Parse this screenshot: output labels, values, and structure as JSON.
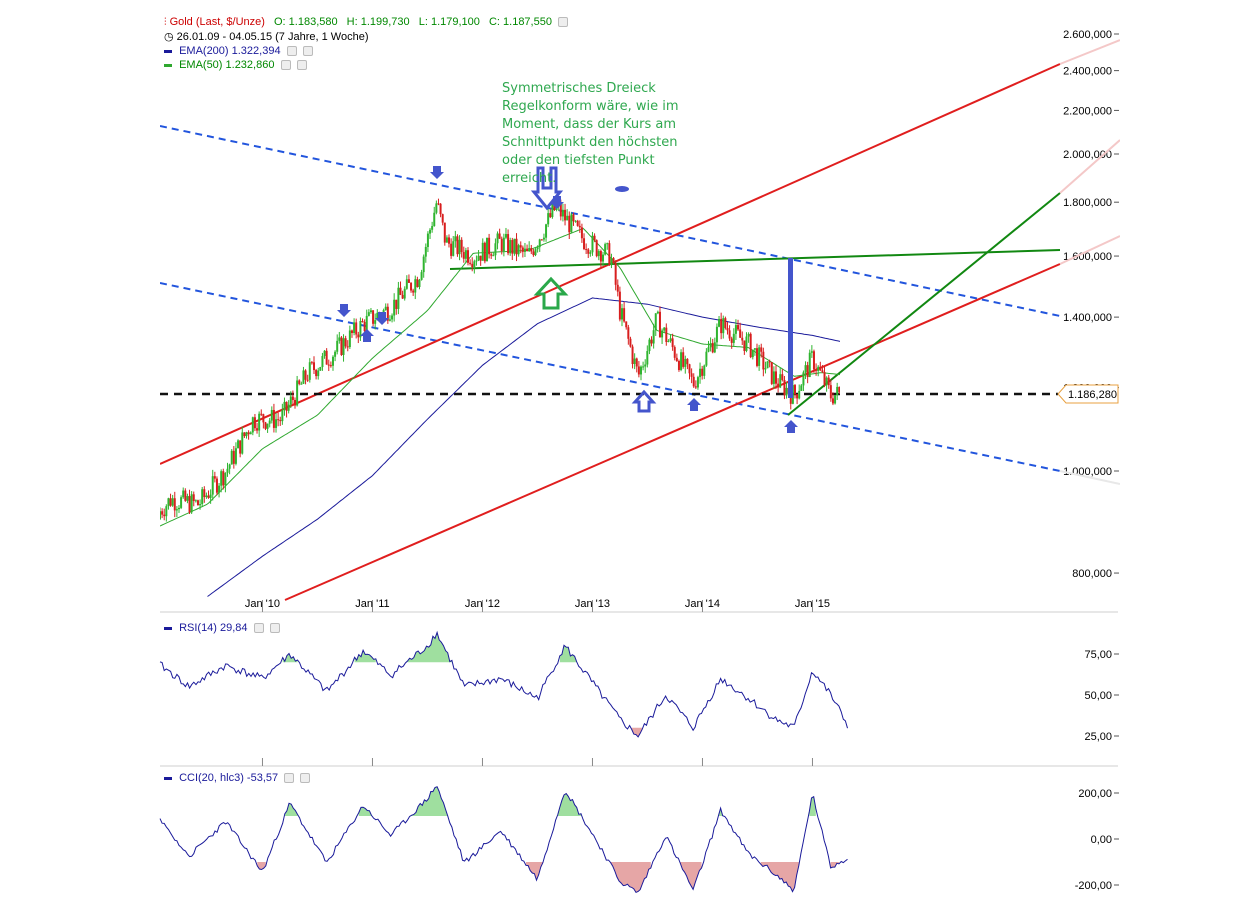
{
  "legend": {
    "instrument": "Gold (Last, $/Unze)",
    "open": "O: 1.183,580",
    "high": "H: 1.199,730",
    "low": "L: 1.179,100",
    "close": "C: 1.187,550",
    "period": "26.01.09 - 04.05.15 (7 Jahre, 1 Woche)",
    "ema200": "EMA(200)  1.322,394",
    "ema50": "EMA(50)  1.232,860",
    "rsi": "RSI(14)  29,84",
    "cci": "CCI(20, hlc3)  -53,57"
  },
  "annotation": "Symmetrisches Dreieck Regelkonform wäre, wie im Moment, dass der Kurs am Schnittpunkt den höchsten oder den tiefsten Punkt erreicht.",
  "current_price_label": "1.186,280",
  "colors": {
    "up_candle": "#2fb42f",
    "down_candle": "#d81e1e",
    "ema200": "#1a1a9a",
    "ema50": "#2fa82f",
    "red_trend": "#e01e1e",
    "blue_channel": "#2255dd",
    "green_trend": "#118811",
    "arrow_blue": "#4455cc",
    "arrow_green": "#2aa84a",
    "overbought_fill": "#9fdf9f",
    "oversold_fill": "#e6a6a6",
    "indicator_line": "#1a1a9a"
  },
  "chart_data": [
    {
      "type": "line",
      "title": "Gold (Last, $/Unze)",
      "x_ticks": [
        "Jan '10",
        "Jan '11",
        "Jan '12",
        "Jan '13",
        "Jan '14",
        "Jan '15"
      ],
      "y_ticks": [
        "800,000",
        "1.000,000",
        "1.200,000",
        "1.400,000",
        "1.600,000",
        "1.800,000",
        "2.000,000",
        "2.200,000",
        "2.400,000",
        "2.600,000"
      ],
      "y_scale": "log",
      "ylim": [
        720,
        2650
      ],
      "x_range": [
        "2009-01-26",
        "2015-05-04"
      ],
      "series": [
        {
          "name": "Gold",
          "x": [
            "2009-01",
            "2009-03",
            "2009-06",
            "2009-09",
            "2009-12",
            "2010-03",
            "2010-06",
            "2010-09",
            "2010-12",
            "2011-03",
            "2011-06",
            "2011-08",
            "2011-09",
            "2011-12",
            "2012-03",
            "2012-06",
            "2012-09",
            "2012-12",
            "2013-03",
            "2013-04",
            "2013-06",
            "2013-08",
            "2013-12",
            "2014-03",
            "2014-06",
            "2014-09",
            "2014-11",
            "2015-01",
            "2015-03",
            "2015-05"
          ],
          "values": [
            900,
            940,
            930,
            1000,
            1120,
            1120,
            1240,
            1300,
            1380,
            1430,
            1530,
            1800,
            1650,
            1600,
            1650,
            1600,
            1780,
            1660,
            1600,
            1420,
            1230,
            1390,
            1210,
            1380,
            1320,
            1220,
            1180,
            1280,
            1180,
            1187
          ]
        },
        {
          "name": "EMA(200)",
          "x": [
            "2009-07",
            "2010-01",
            "2010-07",
            "2011-01",
            "2011-07",
            "2012-01",
            "2012-07",
            "2013-01",
            "2013-07",
            "2014-01",
            "2014-07",
            "2015-01",
            "2015-05"
          ],
          "values": [
            760,
            830,
            900,
            990,
            1120,
            1260,
            1380,
            1460,
            1440,
            1400,
            1370,
            1345,
            1322
          ]
        },
        {
          "name": "EMA(50)",
          "x": [
            "2009-01",
            "2009-07",
            "2010-01",
            "2010-07",
            "2011-01",
            "2011-07",
            "2011-12",
            "2012-06",
            "2012-12",
            "2013-04",
            "2013-08",
            "2014-01",
            "2014-06",
            "2014-11",
            "2015-02",
            "2015-05"
          ],
          "values": [
            880,
            930,
            1050,
            1130,
            1280,
            1420,
            1610,
            1620,
            1700,
            1560,
            1360,
            1320,
            1310,
            1230,
            1240,
            1232
          ]
        }
      ],
      "reference_lines": {
        "horizontal_dashed": 1186,
        "triangle_top": [
          1555,
          1620
        ],
        "peak_marker": 1595
      }
    },
    {
      "type": "line",
      "title": "RSI(14)",
      "y_ticks": [
        "25,00",
        "50,00",
        "75,00"
      ],
      "ylim": [
        8,
        92
      ],
      "x": [
        "2009-01",
        "2009-05",
        "2009-09",
        "2010-01",
        "2010-04",
        "2010-08",
        "2010-12",
        "2011-03",
        "2011-07",
        "2011-08",
        "2011-11",
        "2012-03",
        "2012-07",
        "2012-10",
        "2013-02",
        "2013-04",
        "2013-06",
        "2013-09",
        "2013-12",
        "2014-03",
        "2014-06",
        "2014-09",
        "2014-11",
        "2015-01",
        "2015-03",
        "2015-05"
      ],
      "values": [
        72,
        55,
        68,
        60,
        75,
        52,
        77,
        62,
        80,
        88,
        55,
        60,
        48,
        80,
        50,
        35,
        25,
        50,
        30,
        60,
        48,
        35,
        30,
        65,
        50,
        30
      ]
    },
    {
      "type": "line",
      "title": "CCI(20, hlc3)",
      "y_ticks": [
        "-200,00",
        "0,00",
        "200,00"
      ],
      "ylim": [
        -260,
        280
      ],
      "x": [
        "2009-01",
        "2009-05",
        "2009-09",
        "2010-01",
        "2010-04",
        "2010-08",
        "2010-12",
        "2011-03",
        "2011-07",
        "2011-08",
        "2011-11",
        "2012-03",
        "2012-07",
        "2012-10",
        "2013-02",
        "2013-04",
        "2013-06",
        "2013-09",
        "2013-12",
        "2014-03",
        "2014-06",
        "2014-09",
        "2014-11",
        "2015-01",
        "2015-03",
        "2015-05"
      ],
      "values": [
        150,
        -50,
        100,
        -120,
        180,
        -80,
        170,
        40,
        200,
        260,
        -80,
        60,
        -150,
        240,
        -20,
        -160,
        -210,
        40,
        -200,
        150,
        -40,
        -130,
        -200,
        220,
        -100,
        -54
      ]
    }
  ]
}
